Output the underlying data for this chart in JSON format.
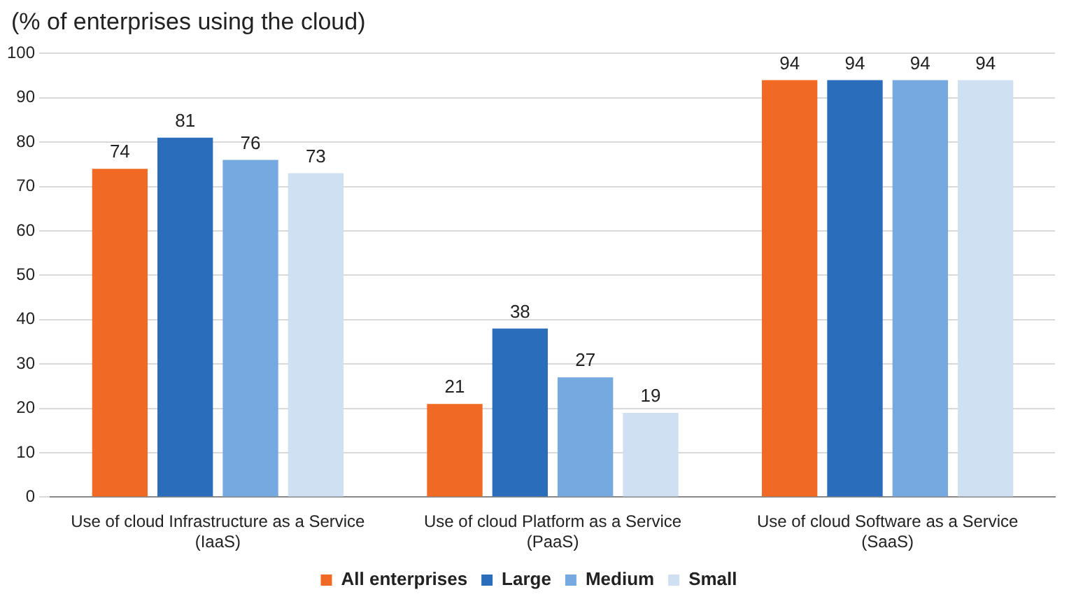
{
  "chart_data": {
    "type": "bar",
    "title": "(% of enterprises using the cloud)",
    "categories": [
      "Use of cloud Infrastructure as a Service (IaaS)",
      "Use of cloud Platform as a Service (PaaS)",
      "Use of cloud Software as a Service (SaaS)"
    ],
    "series": [
      {
        "name": "All enterprises",
        "color": "#f06a25",
        "values": [
          74,
          21,
          94
        ]
      },
      {
        "name": "Large",
        "color": "#2a6ebb",
        "values": [
          81,
          38,
          94
        ]
      },
      {
        "name": "Medium",
        "color": "#76a9e0",
        "values": [
          76,
          27,
          94
        ]
      },
      {
        "name": "Small",
        "color": "#cfe0f3",
        "values": [
          73,
          19,
          94
        ]
      }
    ],
    "ylim": [
      0,
      100
    ],
    "yticks": [
      0,
      10,
      20,
      30,
      40,
      50,
      60,
      70,
      80,
      90,
      100
    ],
    "grid": "y",
    "legend": "bottom",
    "data_labels": true
  }
}
